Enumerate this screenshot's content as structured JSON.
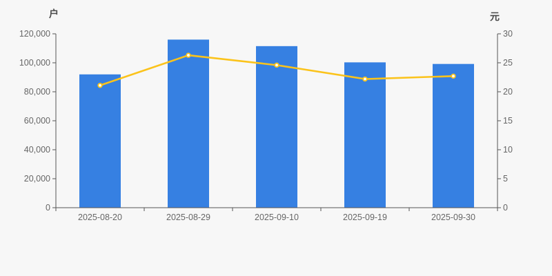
{
  "page": {
    "background": "#f7f7f7"
  },
  "chart_data": {
    "type": "bar+line",
    "title": "",
    "categories": [
      "2025-08-20",
      "2025-08-29",
      "2025-09-10",
      "2025-09-19",
      "2025-09-30"
    ],
    "series": [
      {
        "name": "bar-series",
        "type": "bar",
        "axis": "left",
        "unit": "户",
        "values": [
          92000,
          116000,
          111500,
          100300,
          99200
        ],
        "color": "#3680e2"
      },
      {
        "name": "line-series",
        "type": "line",
        "axis": "right",
        "unit": "元",
        "values": [
          21.1,
          26.3,
          24.6,
          22.2,
          22.7
        ],
        "color": "#fbc31b",
        "marker_fill": "#ffffff"
      }
    ],
    "left_axis": {
      "unit": "户",
      "min": 0,
      "max": 120000,
      "step": 20000,
      "tick_labels": [
        "0",
        "20,000",
        "40,000",
        "60,000",
        "80,000",
        "100,000",
        "120,000"
      ]
    },
    "right_axis": {
      "unit": "元",
      "min": 0,
      "max": 30,
      "step": 5,
      "tick_labels": [
        "0",
        "5",
        "10",
        "15",
        "20",
        "25",
        "30"
      ]
    },
    "legend": "none",
    "grid": false,
    "axis_color": "#555555",
    "tick_label_color": "#666666",
    "unit_label_color": "#4a4a4a"
  }
}
